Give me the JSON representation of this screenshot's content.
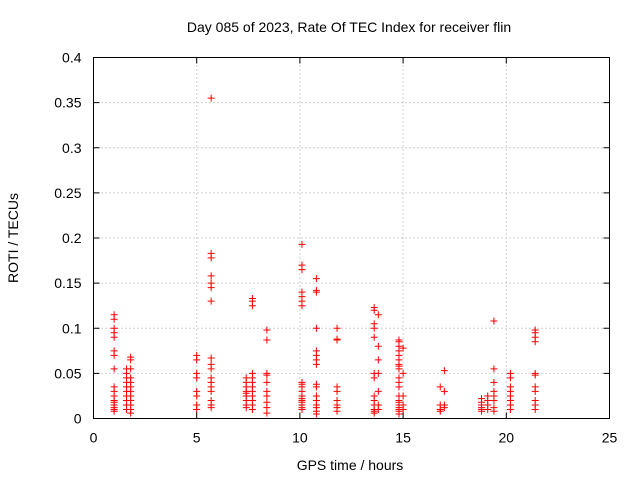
{
  "chart_data": {
    "type": "scatter",
    "title": "Day 085 of 2023, Rate Of TEC Index for receiver flin",
    "xlabel": "GPS time / hours",
    "ylabel": "ROTI / TECUs",
    "xlim": [
      0,
      25
    ],
    "ylim": [
      0,
      0.4
    ],
    "xticks": [
      0,
      5,
      10,
      15,
      20,
      25
    ],
    "xtick_labels": [
      "0",
      "5",
      "10",
      "15",
      "20",
      "25"
    ],
    "yticks": [
      0,
      0.05,
      0.1,
      0.15,
      0.2,
      0.25,
      0.3,
      0.35,
      0.4
    ],
    "ytick_labels": [
      "0",
      "0.05",
      "0.1",
      "0.15",
      "0.2",
      "0.25",
      "0.3",
      "0.35",
      "0.4"
    ],
    "grid": true,
    "marker": "plus",
    "color": "#ff0000",
    "points": [
      [
        1.0,
        0.115
      ],
      [
        1.0,
        0.11
      ],
      [
        1.0,
        0.1
      ],
      [
        1.0,
        0.095
      ],
      [
        1.0,
        0.09
      ],
      [
        1.0,
        0.075
      ],
      [
        1.0,
        0.07
      ],
      [
        1.0,
        0.055
      ],
      [
        1.0,
        0.035
      ],
      [
        1.0,
        0.03
      ],
      [
        1.0,
        0.025
      ],
      [
        1.0,
        0.02
      ],
      [
        1.0,
        0.018
      ],
      [
        1.0,
        0.015
      ],
      [
        1.0,
        0.012
      ],
      [
        1.0,
        0.01
      ],
      [
        1.0,
        0.008
      ],
      [
        1.6,
        0.055
      ],
      [
        1.6,
        0.05
      ],
      [
        1.6,
        0.045
      ],
      [
        1.6,
        0.04
      ],
      [
        1.6,
        0.035
      ],
      [
        1.6,
        0.03
      ],
      [
        1.6,
        0.025
      ],
      [
        1.6,
        0.02
      ],
      [
        1.6,
        0.015
      ],
      [
        1.6,
        0.01
      ],
      [
        1.8,
        0.068
      ],
      [
        1.8,
        0.065
      ],
      [
        1.8,
        0.055
      ],
      [
        1.8,
        0.045
      ],
      [
        1.8,
        0.04
      ],
      [
        1.8,
        0.035
      ],
      [
        1.8,
        0.03
      ],
      [
        1.8,
        0.025
      ],
      [
        1.8,
        0.02
      ],
      [
        1.8,
        0.015
      ],
      [
        1.8,
        0.01
      ],
      [
        1.8,
        0.006
      ],
      [
        5.0,
        0.07
      ],
      [
        5.0,
        0.065
      ],
      [
        5.0,
        0.05
      ],
      [
        5.0,
        0.045
      ],
      [
        5.0,
        0.03
      ],
      [
        5.0,
        0.025
      ],
      [
        5.0,
        0.015
      ],
      [
        5.0,
        0.01
      ],
      [
        5.7,
        0.355
      ],
      [
        5.7,
        0.183
      ],
      [
        5.7,
        0.178
      ],
      [
        5.7,
        0.158
      ],
      [
        5.7,
        0.15
      ],
      [
        5.7,
        0.145
      ],
      [
        5.7,
        0.13
      ],
      [
        5.7,
        0.067
      ],
      [
        5.7,
        0.06
      ],
      [
        5.7,
        0.055
      ],
      [
        5.7,
        0.045
      ],
      [
        5.7,
        0.04
      ],
      [
        5.7,
        0.035
      ],
      [
        5.7,
        0.03
      ],
      [
        5.7,
        0.02
      ],
      [
        5.7,
        0.015
      ],
      [
        5.7,
        0.012
      ],
      [
        7.4,
        0.045
      ],
      [
        7.4,
        0.04
      ],
      [
        7.4,
        0.035
      ],
      [
        7.4,
        0.03
      ],
      [
        7.4,
        0.028
      ],
      [
        7.4,
        0.025
      ],
      [
        7.4,
        0.02
      ],
      [
        7.4,
        0.015
      ],
      [
        7.4,
        0.012
      ],
      [
        7.7,
        0.133
      ],
      [
        7.7,
        0.13
      ],
      [
        7.7,
        0.125
      ],
      [
        7.7,
        0.05
      ],
      [
        7.7,
        0.045
      ],
      [
        7.7,
        0.04
      ],
      [
        7.7,
        0.035
      ],
      [
        7.7,
        0.03
      ],
      [
        7.7,
        0.025
      ],
      [
        7.7,
        0.02
      ],
      [
        7.7,
        0.015
      ],
      [
        7.7,
        0.01
      ],
      [
        8.4,
        0.098
      ],
      [
        8.4,
        0.087
      ],
      [
        8.4,
        0.05
      ],
      [
        8.4,
        0.048
      ],
      [
        8.4,
        0.04
      ],
      [
        8.4,
        0.03
      ],
      [
        8.4,
        0.025
      ],
      [
        8.4,
        0.018
      ],
      [
        8.4,
        0.012
      ],
      [
        8.4,
        0.006
      ],
      [
        10.1,
        0.193
      ],
      [
        10.1,
        0.17
      ],
      [
        10.1,
        0.165
      ],
      [
        10.1,
        0.14
      ],
      [
        10.1,
        0.135
      ],
      [
        10.1,
        0.13
      ],
      [
        10.1,
        0.125
      ],
      [
        10.1,
        0.04
      ],
      [
        10.1,
        0.038
      ],
      [
        10.1,
        0.035
      ],
      [
        10.1,
        0.03
      ],
      [
        10.1,
        0.025
      ],
      [
        10.1,
        0.022
      ],
      [
        10.1,
        0.02
      ],
      [
        10.1,
        0.018
      ],
      [
        10.1,
        0.015
      ],
      [
        10.1,
        0.012
      ],
      [
        10.1,
        0.01
      ],
      [
        10.8,
        0.155
      ],
      [
        10.8,
        0.142
      ],
      [
        10.8,
        0.14
      ],
      [
        10.8,
        0.1
      ],
      [
        10.8,
        0.075
      ],
      [
        10.8,
        0.07
      ],
      [
        10.8,
        0.065
      ],
      [
        10.8,
        0.06
      ],
      [
        10.8,
        0.038
      ],
      [
        10.8,
        0.035
      ],
      [
        10.8,
        0.025
      ],
      [
        10.8,
        0.02
      ],
      [
        10.8,
        0.015
      ],
      [
        10.8,
        0.012
      ],
      [
        10.8,
        0.008
      ],
      [
        10.8,
        0.005
      ],
      [
        11.8,
        0.1
      ],
      [
        11.8,
        0.088
      ],
      [
        11.8,
        0.087
      ],
      [
        11.8,
        0.035
      ],
      [
        11.8,
        0.03
      ],
      [
        11.8,
        0.02
      ],
      [
        11.8,
        0.015
      ],
      [
        11.8,
        0.012
      ],
      [
        11.8,
        0.008
      ],
      [
        13.6,
        0.123
      ],
      [
        13.6,
        0.12
      ],
      [
        13.6,
        0.105
      ],
      [
        13.6,
        0.1
      ],
      [
        13.6,
        0.09
      ],
      [
        13.6,
        0.05
      ],
      [
        13.6,
        0.045
      ],
      [
        13.6,
        0.025
      ],
      [
        13.6,
        0.02
      ],
      [
        13.6,
        0.015
      ],
      [
        13.6,
        0.01
      ],
      [
        13.6,
        0.008
      ],
      [
        13.6,
        0.006
      ],
      [
        13.8,
        0.115
      ],
      [
        13.8,
        0.08
      ],
      [
        13.8,
        0.065
      ],
      [
        13.8,
        0.05
      ],
      [
        13.8,
        0.03
      ],
      [
        13.8,
        0.015
      ],
      [
        13.8,
        0.01
      ],
      [
        14.8,
        0.087
      ],
      [
        14.8,
        0.085
      ],
      [
        14.8,
        0.08
      ],
      [
        14.8,
        0.075
      ],
      [
        14.8,
        0.07
      ],
      [
        14.8,
        0.065
      ],
      [
        14.8,
        0.06
      ],
      [
        14.8,
        0.058
      ],
      [
        14.8,
        0.055
      ],
      [
        14.8,
        0.045
      ],
      [
        14.8,
        0.04
      ],
      [
        14.8,
        0.035
      ],
      [
        14.8,
        0.025
      ],
      [
        14.8,
        0.02
      ],
      [
        14.8,
        0.018
      ],
      [
        14.8,
        0.015
      ],
      [
        14.8,
        0.012
      ],
      [
        14.8,
        0.01
      ],
      [
        14.8,
        0.008
      ],
      [
        14.8,
        0.005
      ],
      [
        15.0,
        0.078
      ],
      [
        15.0,
        0.05
      ],
      [
        15.0,
        0.025
      ],
      [
        15.0,
        0.015
      ],
      [
        15.0,
        0.01
      ],
      [
        16.8,
        0.035
      ],
      [
        16.8,
        0.015
      ],
      [
        16.8,
        0.01
      ],
      [
        16.8,
        0.008
      ],
      [
        17.0,
        0.053
      ],
      [
        17.0,
        0.03
      ],
      [
        17.0,
        0.015
      ],
      [
        17.0,
        0.012
      ],
      [
        18.8,
        0.022
      ],
      [
        18.8,
        0.018
      ],
      [
        18.8,
        0.015
      ],
      [
        18.8,
        0.012
      ],
      [
        18.8,
        0.01
      ],
      [
        18.8,
        0.008
      ],
      [
        19.1,
        0.025
      ],
      [
        19.1,
        0.02
      ],
      [
        19.1,
        0.015
      ],
      [
        19.1,
        0.01
      ],
      [
        19.4,
        0.108
      ],
      [
        19.4,
        0.055
      ],
      [
        19.4,
        0.04
      ],
      [
        19.4,
        0.03
      ],
      [
        19.4,
        0.025
      ],
      [
        19.4,
        0.02
      ],
      [
        19.4,
        0.012
      ],
      [
        19.4,
        0.008
      ],
      [
        20.2,
        0.05
      ],
      [
        20.2,
        0.045
      ],
      [
        20.2,
        0.035
      ],
      [
        20.2,
        0.03
      ],
      [
        20.2,
        0.025
      ],
      [
        20.2,
        0.02
      ],
      [
        20.2,
        0.015
      ],
      [
        20.2,
        0.01
      ],
      [
        21.4,
        0.098
      ],
      [
        21.4,
        0.095
      ],
      [
        21.4,
        0.09
      ],
      [
        21.4,
        0.085
      ],
      [
        21.4,
        0.05
      ],
      [
        21.4,
        0.048
      ],
      [
        21.4,
        0.035
      ],
      [
        21.4,
        0.03
      ],
      [
        21.4,
        0.02
      ],
      [
        21.4,
        0.015
      ],
      [
        21.4,
        0.01
      ]
    ]
  }
}
